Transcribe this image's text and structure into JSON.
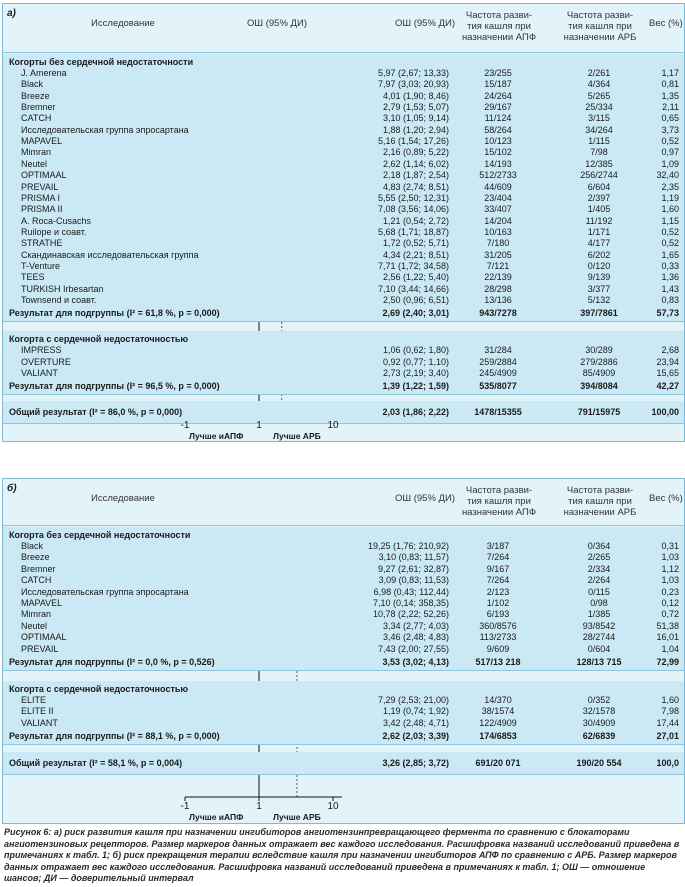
{
  "panels": [
    {
      "label": "а)",
      "headers": {
        "study": "Исследование",
        "plot": "ОШ (95% ДИ)",
        "ci": "ОШ (95% ДИ)",
        "ace": "Частота разви-\nтия кашля при\nназначении АПФ",
        "arb": "Частота разви-\nтия кашля при\nназначении АРБ",
        "weight": "Вес (%)"
      },
      "axis": {
        "ticks": [
          "-1",
          "1",
          "10"
        ],
        "left_label": "Лучше иАПФ",
        "right_label": "Лучше АРБ"
      },
      "groups": [
        {
          "title": "Когорты без сердечной недостаточности",
          "rows": [
            {
              "study": "J. Amerena",
              "or": 5.97,
              "lo": 2.67,
              "hi": 13.33,
              "ci": "5,97 (2,67; 13,33)",
              "ace": "23/255",
              "arb": "2/261",
              "weight": "1,17"
            },
            {
              "study": "Black",
              "or": 7.97,
              "lo": 3.03,
              "hi": 20.93,
              "ci": "7,97 (3,03; 20,93)",
              "ace": "15/187",
              "arb": "4/364",
              "weight": "0,81"
            },
            {
              "study": "Breeze",
              "or": 4.01,
              "lo": 1.9,
              "hi": 8.46,
              "ci": "4,01 (1,90; 8,46)",
              "ace": "24/264",
              "arb": "5/265",
              "weight": "1,35"
            },
            {
              "study": "Bremner",
              "or": 2.79,
              "lo": 1.53,
              "hi": 5.07,
              "ci": "2,79 (1,53; 5,07)",
              "ace": "29/167",
              "arb": "25/334",
              "weight": "2,11"
            },
            {
              "study": "CATCH",
              "or": 3.1,
              "lo": 1.05,
              "hi": 9.14,
              "ci": "3,10 (1,05; 9,14)",
              "ace": "11/124",
              "arb": "3/115",
              "weight": "0,65"
            },
            {
              "study": "Исследовательская группа эпросартана",
              "or": 1.88,
              "lo": 1.2,
              "hi": 2.94,
              "ci": "1,88 (1,20; 2,94)",
              "ace": "58/264",
              "arb": "34/264",
              "weight": "3,73"
            },
            {
              "study": "MAPAVEL",
              "or": 5.16,
              "lo": 1.54,
              "hi": 17.26,
              "ci": "5,16 (1,54; 17,26)",
              "ace": "10/123",
              "arb": "1/115",
              "weight": "0,52"
            },
            {
              "study": "Mimran",
              "or": 2.16,
              "lo": 0.89,
              "hi": 5.22,
              "ci": "2,16 (0,89; 5,22)",
              "ace": "15/102",
              "arb": "7/98",
              "weight": "0,97"
            },
            {
              "study": "Neutel",
              "or": 2.62,
              "lo": 1.14,
              "hi": 6.02,
              "ci": "2,62 (1,14; 6,02)",
              "ace": "14/193",
              "arb": "12/385",
              "weight": "1,09"
            },
            {
              "study": "OPTIMAAL",
              "or": 2.18,
              "lo": 1.87,
              "hi": 2.54,
              "ci": "2,18 (1,87; 2,54)",
              "ace": "512/2733",
              "arb": "256/2744",
              "weight": "32,40"
            },
            {
              "study": "PREVAIL",
              "or": 4.83,
              "lo": 2.74,
              "hi": 8.51,
              "ci": "4,83 (2,74; 8,51)",
              "ace": "44/609",
              "arb": "6/604",
              "weight": "2,35"
            },
            {
              "study": "PRISMA I",
              "or": 5.55,
              "lo": 2.5,
              "hi": 12.31,
              "ci": "5,55 (2,50; 12,31)",
              "ace": "23/404",
              "arb": "2/397",
              "weight": "1,19"
            },
            {
              "study": "PRISMA II",
              "or": 7.08,
              "lo": 3.56,
              "hi": 14.06,
              "ci": "7,08 (3,56; 14,06)",
              "ace": "33/407",
              "arb": "1/405",
              "weight": "1,60"
            },
            {
              "study": "A. Roca-Cusachs",
              "or": 1.21,
              "lo": 0.54,
              "hi": 2.72,
              "ci": "1,21 (0,54; 2,72)",
              "ace": "14/204",
              "arb": "11/192",
              "weight": "1,15"
            },
            {
              "study": "Ruilope и соавт.",
              "or": 5.68,
              "lo": 1.71,
              "hi": 18.87,
              "ci": "5,68 (1,71; 18,87)",
              "ace": "10/163",
              "arb": "1/171",
              "weight": "0,52"
            },
            {
              "study": "STRATHE",
              "or": 1.72,
              "lo": 0.52,
              "hi": 5.71,
              "ci": "1,72 (0,52; 5,71)",
              "ace": "7/180",
              "arb": "4/177",
              "weight": "0,52"
            },
            {
              "study": "Скандинавская исследовательская группа",
              "or": 4.34,
              "lo": 2.21,
              "hi": 8.51,
              "ci": "4,34 (2,21; 8,51)",
              "ace": "31/205",
              "arb": "6/202",
              "weight": "1,65"
            },
            {
              "study": "T-Venture",
              "or": 7.71,
              "lo": 1.72,
              "hi": 34.58,
              "ci": "7,71 (1,72; 34,58)",
              "ace": "7/121",
              "arb": "0/120",
              "weight": "0,33"
            },
            {
              "study": "TEES",
              "or": 2.56,
              "lo": 1.22,
              "hi": 5.4,
              "ci": "2,56 (1,22; 5,40)",
              "ace": "22/139",
              "arb": "9/139",
              "weight": "1,36"
            },
            {
              "study": "TURKISH Irbesartan",
              "or": 7.1,
              "lo": 3.44,
              "hi": 14.66,
              "ci": "7,10 (3,44; 14,66)",
              "ace": "28/298",
              "arb": "3/377",
              "weight": "1,43"
            },
            {
              "study": "Townsend и соавт.",
              "or": 2.5,
              "lo": 0.96,
              "hi": 6.51,
              "ci": "2,50 (0,96; 6,51)",
              "ace": "13/136",
              "arb": "5/132",
              "weight": "0,83"
            }
          ],
          "summary": {
            "label": "Результат для подгруппы (I² = 61,8 %, р = 0,000)",
            "or": 2.69,
            "lo": 2.4,
            "hi": 3.01,
            "ci": "2,69 (2,40; 3,01)",
            "ace": "943/7278",
            "arb": "397/7861",
            "weight": "57,73"
          }
        },
        {
          "title": "Когорта с сердечной недостаточностью",
          "rows": [
            {
              "study": "IMPRESS",
              "or": 1.06,
              "lo": 0.62,
              "hi": 1.8,
              "ci": "1,06 (0,62; 1,80)",
              "ace": "31/284",
              "arb": "30/289",
              "weight": "2,68"
            },
            {
              "study": "OVERTURE",
              "or": 0.92,
              "lo": 0.77,
              "hi": 1.1,
              "ci": "0,92 (0,77; 1,10)",
              "ace": "259/2884",
              "arb": "279/2886",
              "weight": "23,94"
            },
            {
              "study": "VALIANT",
              "or": 2.73,
              "lo": 2.19,
              "hi": 3.4,
              "ci": "2,73 (2,19; 3,40)",
              "ace": "245/4909",
              "arb": "85/4909",
              "weight": "15,65"
            }
          ],
          "summary": {
            "label": "Результат для подгруппы (I² = 96,5 %, р = 0,000)",
            "or": 1.39,
            "lo": 1.22,
            "hi": 1.59,
            "ci": "1,39 (1,22; 1,59)",
            "ace": "535/8077",
            "arb": "394/8084",
            "weight": "42,27"
          }
        }
      ],
      "overall": {
        "label": "Общий результат (I² = 86,0 %, р = 0,000)",
        "or": 2.03,
        "lo": 1.86,
        "hi": 2.22,
        "ci": "2,03 (1,86; 2,22)",
        "ace": "1478/15355",
        "arb": "791/15975",
        "weight": "100,00"
      }
    },
    {
      "label": "б)",
      "headers": {
        "study": "Исследование",
        "plot": "",
        "ci": "ОШ (95% ДИ)",
        "ace": "Частота разви-\nтия кашля при\nназначении АПФ",
        "arb": "Частота разви-\nтия кашля при\nназначении АРБ",
        "weight": "Вес (%)"
      },
      "axis": {
        "ticks": [
          "-1",
          "1",
          "10"
        ],
        "left_label": "Лучше иАПФ",
        "right_label": "Лучше АРБ"
      },
      "groups": [
        {
          "title": "Когорта без сердечной недостаточности",
          "rows": [
            {
              "study": "Black",
              "or": 19.25,
              "lo": 1.76,
              "hi": 210.92,
              "ci": "19,25 (1,76; 210,92)",
              "ace": "3/187",
              "arb": "0/364",
              "weight": "0,31"
            },
            {
              "study": "Breeze",
              "or": 3.1,
              "lo": 0.83,
              "hi": 11.57,
              "ci": "3,10 (0,83; 11,57)",
              "ace": "7/264",
              "arb": "2/265",
              "weight": "1,03"
            },
            {
              "study": "Bremner",
              "or": 9.27,
              "lo": 2.61,
              "hi": 32.87,
              "ci": "9,27 (2,61; 32,87)",
              "ace": "9/167",
              "arb": "2/334",
              "weight": "1,12"
            },
            {
              "study": "CATCH",
              "or": 3.09,
              "lo": 0.83,
              "hi": 11.53,
              "ci": "3,09 (0,83; 11,53)",
              "ace": "7/264",
              "arb": "2/264",
              "weight": "1,03"
            },
            {
              "study": "Исследовательская группа эпросартана",
              "or": 6.98,
              "lo": 0.43,
              "hi": 112.44,
              "ci": "6,98 (0,43; 112,44)",
              "ace": "2/123",
              "arb": "0/115",
              "weight": "0,23"
            },
            {
              "study": "MAPAVEL",
              "or": 7.1,
              "lo": 0.14,
              "hi": 358.35,
              "ci": "7,10 (0,14; 358,35)",
              "ace": "1/102",
              "arb": "0/98",
              "weight": "0,12"
            },
            {
              "study": "Mimran",
              "or": 10.78,
              "lo": 2.22,
              "hi": 52.26,
              "ci": "10,78 (2,22; 52,26)",
              "ace": "6/193",
              "arb": "1/385",
              "weight": "0,72"
            },
            {
              "study": "Neutel",
              "or": 3.34,
              "lo": 2.77,
              "hi": 4.03,
              "ci": "3,34 (2,77; 4,03)",
              "ace": "360/8576",
              "arb": "93/8542",
              "weight": "51,38"
            },
            {
              "study": "OPTIMAAL",
              "or": 3.46,
              "lo": 2.48,
              "hi": 4.83,
              "ci": "3,46 (2,48; 4,83)",
              "ace": "113/2733",
              "arb": "28/2744",
              "weight": "16,01"
            },
            {
              "study": "PREVAIL",
              "or": 7.43,
              "lo": 2.0,
              "hi": 27.55,
              "ci": "7,43 (2,00; 27,55)",
              "ace": "9/609",
              "arb": "0/604",
              "weight": "1,04"
            }
          ],
          "summary": {
            "label": "Результат для подгруппы (I² = 0,0 %, р = 0,526)",
            "or": 3.53,
            "lo": 3.02,
            "hi": 4.13,
            "ci": "3,53 (3,02; 4,13)",
            "ace": "517/13 218",
            "arb": "128/13 715",
            "weight": "72,99"
          }
        },
        {
          "title": "Когорта с сердечной недостаточностью",
          "rows": [
            {
              "study": "ELITE",
              "or": 7.29,
              "lo": 2.53,
              "hi": 21.0,
              "ci": "7,29 (2,53; 21,00)",
              "ace": "14/370",
              "arb": "0/352",
              "weight": "1,60"
            },
            {
              "study": "ELITE II",
              "or": 1.19,
              "lo": 0.74,
              "hi": 1.92,
              "ci": "1,19 (0,74; 1,92)",
              "ace": "38/1574",
              "arb": "32/1578",
              "weight": "7,98"
            },
            {
              "study": "VALIANT",
              "or": 3.42,
              "lo": 2.48,
              "hi": 4.71,
              "ci": "3,42 (2,48; 4,71)",
              "ace": "122/4909",
              "arb": "30/4909",
              "weight": "17,44"
            }
          ],
          "summary": {
            "label": "Результат для подгруппы (I² = 88,1 %, р = 0,000)",
            "or": 2.62,
            "lo": 2.03,
            "hi": 3.39,
            "ci": "2,62 (2,03; 3,39)",
            "ace": "174/6853",
            "arb": "62/6839",
            "weight": "27,01"
          }
        }
      ],
      "overall": {
        "label": "Общий результат (I² = 58,1 %, р = 0,004)",
        "or": 3.26,
        "lo": 2.85,
        "hi": 3.72,
        "ci": "3,26 (2,85; 3,72)",
        "ace": "691/20 071",
        "arb": "190/20 554",
        "weight": "100,0"
      }
    }
  ],
  "caption": "Рисунок 6: а) риск развития кашля при назначении ингибиторов ангиотензинпревращающего фермента по сравнению с блокаторами ангиотензиновых рецепторов. Размер маркеров данных отражает вес каждого исследования. Расшифровка названий исследований приведена в примечаниях к табл. 1; б) риск прекращения терапии вследствие кашля при назначении ингибиторов АПФ по сравнению с АРБ. Размер маркеров данных отражает вес каждого исследования. Расшифровка названий исследований приведена в примечаниях к табл. 1; ОШ — отношение шансов; ДИ — доверительный интервал",
  "chart_data": [
    {
      "type": "forest",
      "title": "а)",
      "xscale": "log",
      "xlabel": "ОШ (95% ДИ)",
      "studies": [
        "J. Amerena",
        "Black",
        "Breeze",
        "Bremner",
        "CATCH",
        "Исследовательская группа эпросартана",
        "MAPAVEL",
        "Mimran",
        "Neutel",
        "OPTIMAAL",
        "PREVAIL",
        "PRISMA I",
        "PRISMA II",
        "A. Roca-Cusachs",
        "Ruilope и соавт.",
        "STRATHE",
        "Скандинавская исследовательская группа",
        "T-Venture",
        "TEES",
        "TURKISH Irbesartan",
        "Townsend и соавт.",
        "IMPRESS",
        "OVERTURE",
        "VALIANT"
      ],
      "or": [
        5.97,
        7.97,
        4.01,
        2.79,
        3.1,
        1.88,
        5.16,
        2.16,
        2.62,
        2.18,
        4.83,
        5.55,
        7.08,
        1.21,
        5.68,
        1.72,
        4.34,
        7.71,
        2.56,
        7.1,
        2.5,
        1.06,
        0.92,
        2.73
      ],
      "subgroup_or": [
        2.69,
        1.39
      ],
      "overall_or": 2.03
    },
    {
      "type": "forest",
      "title": "б)",
      "xscale": "log",
      "studies": [
        "Black",
        "Breeze",
        "Bremner",
        "CATCH",
        "Исследовательская группа эпросартана",
        "MAPAVEL",
        "Mimran",
        "Neutel",
        "OPTIMAAL",
        "PREVAIL",
        "ELITE",
        "ELITE II",
        "VALIANT"
      ],
      "or": [
        19.25,
        3.1,
        9.27,
        3.09,
        6.98,
        7.1,
        10.78,
        3.34,
        3.46,
        7.43,
        7.29,
        1.19,
        3.42
      ],
      "subgroup_or": [
        3.53,
        2.62
      ],
      "overall_or": 3.26
    }
  ]
}
